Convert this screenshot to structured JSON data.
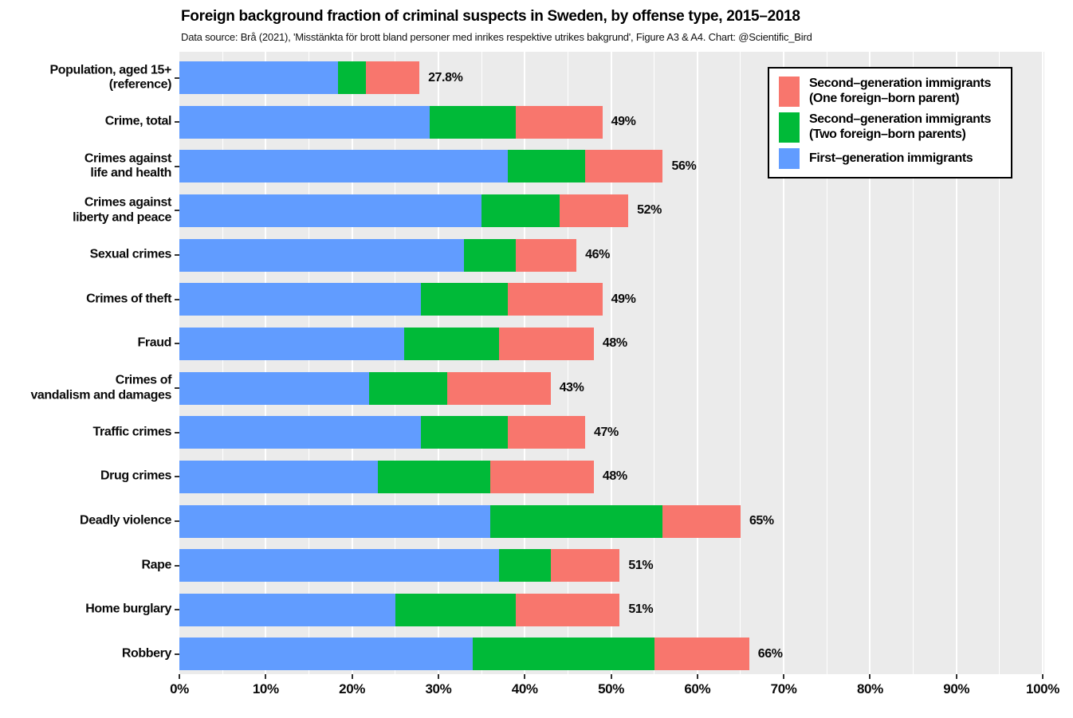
{
  "header": {
    "title": "Foreign background fraction of criminal suspects in Sweden, by offense type, 2015–2018",
    "subtitle": "Data source: Brå (2021), 'Misstänkta för brott bland personer med inrikes respektive utrikes bakgrund', Figure A3 & A4. Chart: @Scientific_Bird"
  },
  "chart_data": {
    "type": "bar",
    "orientation": "horizontal",
    "stacked": true,
    "title": "Foreign background fraction of criminal suspects in Sweden, by offense type, 2015–2018",
    "xlabel": "",
    "ylabel": "",
    "xlim": [
      0,
      100
    ],
    "grid": "white vertical lines, minor every 5%, major every 10%",
    "panel_bg": "#EBEBEB",
    "x_axis": {
      "tick_values": [
        0,
        10,
        20,
        30,
        40,
        50,
        60,
        70,
        80,
        90,
        100
      ],
      "tick_labels": [
        "0%",
        "10%",
        "20%",
        "30%",
        "40%",
        "50%",
        "60%",
        "70%",
        "80%",
        "90%",
        "100%"
      ],
      "minor_grid_step": 5
    },
    "categories": [
      {
        "lines": [
          "Population, aged 15+",
          "(reference)"
        ],
        "total_label": "27.8%",
        "total": 27.8
      },
      {
        "lines": [
          "Crime, total"
        ],
        "total_label": "49%",
        "total": 49
      },
      {
        "lines": [
          "Crimes against",
          "life and health"
        ],
        "total_label": "56%",
        "total": 56
      },
      {
        "lines": [
          "Crimes against",
          "liberty and peace"
        ],
        "total_label": "52%",
        "total": 52
      },
      {
        "lines": [
          "Sexual crimes"
        ],
        "total_label": "46%",
        "total": 46
      },
      {
        "lines": [
          "Crimes of theft"
        ],
        "total_label": "49%",
        "total": 49
      },
      {
        "lines": [
          "Fraud"
        ],
        "total_label": "48%",
        "total": 48
      },
      {
        "lines": [
          "Crimes of",
          "vandalism and damages"
        ],
        "total_label": "43%",
        "total": 43
      },
      {
        "lines": [
          "Traffic crimes"
        ],
        "total_label": "47%",
        "total": 47
      },
      {
        "lines": [
          "Drug crimes"
        ],
        "total_label": "48%",
        "total": 48
      },
      {
        "lines": [
          "Deadly violence"
        ],
        "total_label": "65%",
        "total": 65
      },
      {
        "lines": [
          "Rape"
        ],
        "total_label": "51%",
        "total": 51
      },
      {
        "lines": [
          "Home burglary"
        ],
        "total_label": "51%",
        "total": 51
      },
      {
        "lines": [
          "Robbery"
        ],
        "total_label": "66%",
        "total": 66
      }
    ],
    "series": [
      {
        "name": "First–generation immigrants",
        "color": "#619CFF",
        "values": [
          18.4,
          29,
          38,
          35,
          33,
          28,
          26,
          22,
          28,
          23,
          36,
          37,
          25,
          34
        ]
      },
      {
        "name": "Second–generation immigrants (Two foreign–born parents)",
        "color": "#00BA38",
        "values": [
          3.2,
          10,
          9,
          9,
          6,
          10,
          11,
          9,
          10,
          13,
          20,
          6,
          14,
          21
        ]
      },
      {
        "name": "Second–generation immigrants (One foreign–born parent)",
        "color": "#F8766D",
        "values": [
          6.2,
          10,
          9,
          8,
          7,
          11,
          11,
          12,
          9,
          12,
          9,
          8,
          12,
          11
        ]
      }
    ],
    "legend": {
      "position": "top-right inside panel",
      "border_color": "#000000",
      "background": "#ffffff",
      "entries": [
        {
          "color": "#F8766D",
          "lines": [
            "Second–generation immigrants",
            "(One foreign–born parent)"
          ]
        },
        {
          "color": "#00BA38",
          "lines": [
            "Second–generation immigrants",
            "(Two foreign–born parents)"
          ]
        },
        {
          "color": "#619CFF",
          "lines": [
            "First–generation immigrants"
          ]
        }
      ]
    },
    "colors": {
      "first_generation": "#619CFF",
      "second_generation_two_parents": "#00BA38",
      "second_generation_one_parent": "#F8766D",
      "panel_background": "#EBEBEB",
      "gridline": "#FFFFFF",
      "tick": "#333333",
      "text": "#000000"
    }
  }
}
